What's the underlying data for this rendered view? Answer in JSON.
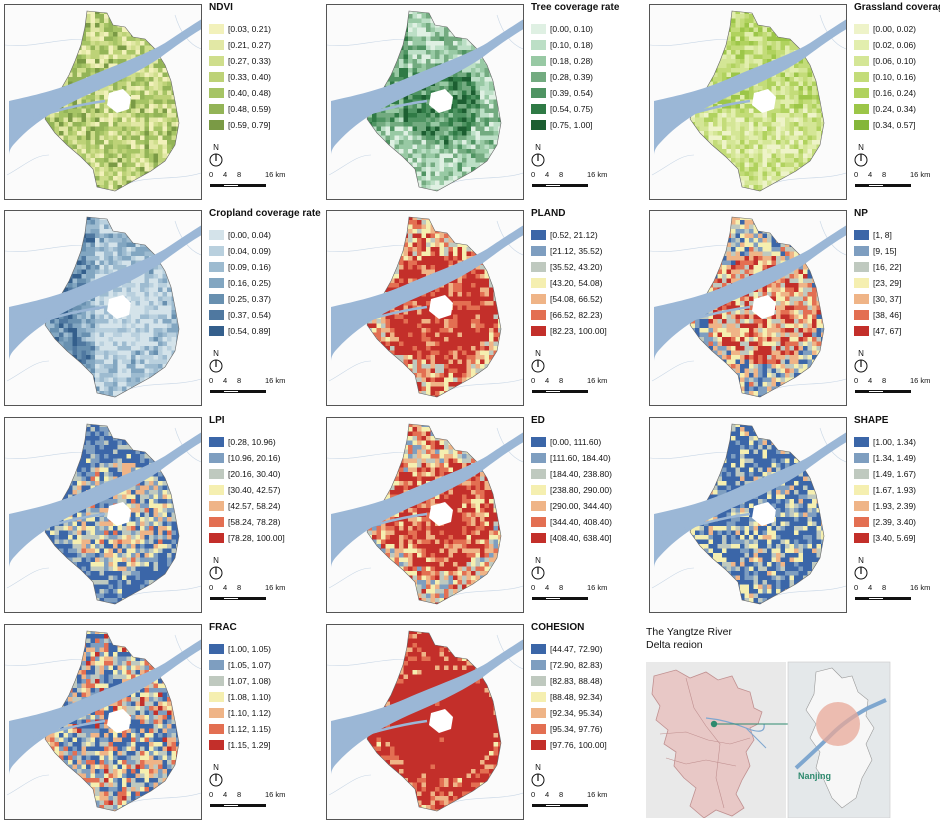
{
  "scale_bar": {
    "tick_0": "0",
    "tick_4": "4",
    "tick_8": "8",
    "tick_16": "16 km"
  },
  "north_label": "N",
  "panels": [
    {
      "title": "NDVI",
      "colors": [
        "#f2f1bb",
        "#e2e8a5",
        "#cfde8c",
        "#bdd277",
        "#a6c465",
        "#93b457",
        "#7a9a45"
      ],
      "labels": [
        "[0.03, 0.21)",
        "[0.21, 0.27)",
        "[0.27, 0.33)",
        "[0.33, 0.40)",
        "[0.40, 0.48)",
        "[0.48, 0.59)",
        "[0.59, 0.79]"
      ]
    },
    {
      "title": "Tree coverage rate",
      "colors": [
        "#dff0e3",
        "#bcdfc6",
        "#98c9a4",
        "#73ab80",
        "#4f9462",
        "#2f7a45",
        "#1c5e31"
      ],
      "labels": [
        "[0.00, 0.10)",
        "[0.10, 0.18)",
        "[0.18, 0.28)",
        "[0.28, 0.39)",
        "[0.39, 0.54)",
        "[0.54, 0.75)",
        "[0.75, 1.00]"
      ]
    },
    {
      "title": "Grassland coverage",
      "colors": [
        "#eef3c9",
        "#e2eeae",
        "#d4e696",
        "#c3dc79",
        "#b0d25e",
        "#9cc648",
        "#84b63a"
      ],
      "labels": [
        "[0.00, 0.02)",
        "[0.02, 0.06)",
        "[0.06, 0.10)",
        "[0.10, 0.16)",
        "[0.16, 0.24)",
        "[0.24, 0.34)",
        "[0.34, 0.57]"
      ]
    },
    {
      "title": "Cropland coverage rate",
      "colors": [
        "#d4e3ea",
        "#b9d0de",
        "#9dbbd0",
        "#82a6c1",
        "#6890b0",
        "#4f78a0",
        "#345f8c"
      ],
      "labels": [
        "[0.00, 0.04)",
        "[0.04, 0.09)",
        "[0.09, 0.16)",
        "[0.16, 0.25)",
        "[0.25, 0.37)",
        "[0.37, 0.54)",
        "[0.54, 0.89]"
      ]
    },
    {
      "title": "PLAND",
      "colors": [
        "#3b66a8",
        "#7e9ec0",
        "#bfc9bf",
        "#f5efb0",
        "#efb487",
        "#e36f52",
        "#c32f2a"
      ],
      "labels": [
        "[0.52, 21.12)",
        "[21.12, 35.52)",
        "[35.52, 43.20)",
        "[43.20, 54.08)",
        "[54.08, 66.52)",
        "[66.52, 82.23)",
        "[82.23, 100.00]"
      ]
    },
    {
      "title": "NP",
      "colors": [
        "#3b66a8",
        "#7e9ec0",
        "#bfc9bf",
        "#f5efb0",
        "#efb487",
        "#e36f52",
        "#c32f2a"
      ],
      "labels": [
        "[1, 8]",
        "[9, 15]",
        "[16, 22]",
        "[23, 29]",
        "[30, 37]",
        "[38, 46]",
        "[47, 67]"
      ]
    },
    {
      "title": "LPI",
      "colors": [
        "#3b66a8",
        "#7e9ec0",
        "#bfc9bf",
        "#f5efb0",
        "#efb487",
        "#e36f52",
        "#c32f2a"
      ],
      "labels": [
        "[0.28, 10.96)",
        "[10.96, 20.16)",
        "[20.16, 30.40)",
        "[30.40, 42.57)",
        "[42.57, 58.24)",
        "[58.24, 78.28)",
        "[78.28, 100.00]"
      ]
    },
    {
      "title": "ED",
      "colors": [
        "#3b66a8",
        "#7e9ec0",
        "#bfc9bf",
        "#f5efb0",
        "#efb487",
        "#e36f52",
        "#c32f2a"
      ],
      "labels": [
        "[0.00, 111.60)",
        "[111.60, 184.40)",
        "[184.40, 238.80)",
        "[238.80, 290.00)",
        "[290.00, 344.40)",
        "[344.40, 408.40)",
        "[408.40, 638.40]"
      ]
    },
    {
      "title": "SHAPE",
      "colors": [
        "#3b66a8",
        "#7e9ec0",
        "#bfc9bf",
        "#f5efb0",
        "#efb487",
        "#e36f52",
        "#c32f2a"
      ],
      "labels": [
        "[1.00, 1.34)",
        "[1.34, 1.49)",
        "[1.49, 1.67)",
        "[1.67, 1.93)",
        "[1.93, 2.39)",
        "[2.39, 3.40)",
        "[3.40, 5.69]"
      ]
    },
    {
      "title": "FRAC",
      "colors": [
        "#3b66a8",
        "#7e9ec0",
        "#bfc9bf",
        "#f5efb0",
        "#efb487",
        "#e36f52",
        "#c32f2a"
      ],
      "labels": [
        "[1.00, 1.05)",
        "[1.05, 1.07)",
        "[1.07, 1.08)",
        "[1.08, 1.10)",
        "[1.10, 1.12)",
        "[1.12, 1.15)",
        "[1.15, 1.29]"
      ]
    },
    {
      "title": "COHESION",
      "colors": [
        "#3b66a8",
        "#7e9ec0",
        "#bfc9bf",
        "#f5efb0",
        "#efb487",
        "#e36f52",
        "#c32f2a"
      ],
      "labels": [
        "[44.47, 72.90)",
        "[72.90, 82.83)",
        "[82.83, 88.48)",
        "[88.48, 92.34)",
        "[92.34, 95.34)",
        "[95.34, 97.76)",
        "[97.76, 100.00]"
      ]
    }
  ],
  "inset": {
    "title_line1": "The Yangtze  River",
    "title_line2": "Delta region",
    "city_label": "Nanjing",
    "accent_color": "#2e8a6e",
    "region_fill": "#e8c8c6",
    "highlight_fill": "#e8a898"
  }
}
